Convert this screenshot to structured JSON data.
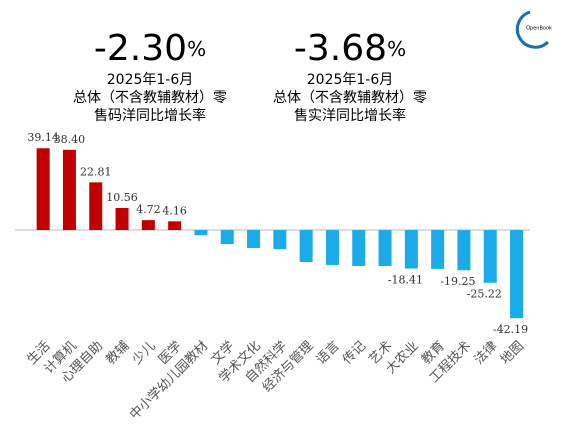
{
  "chart_data": {
    "type": "bar",
    "headlines": [
      {
        "value": "-2.30",
        "unit": "%",
        "lines": [
          "2025年1-6月",
          "总体（不含教辅教材）零",
          "售码洋同比增长率"
        ]
      },
      {
        "value": "-3.68",
        "unit": "%",
        "lines": [
          "2025年1-6月",
          "总体（不含教辅教材）零",
          "售实洋同比增长率"
        ]
      }
    ],
    "logo": "OpenBook",
    "categories": [
      "生活",
      "计算机",
      "心理自助",
      "教辅",
      "少儿",
      "医学",
      "中小学幼儿园教材",
      "文学",
      "学术文化",
      "自然科学",
      "经济与管理",
      "语言",
      "传记",
      "艺术",
      "大农业",
      "教育",
      "工程技术",
      "法律",
      "地图"
    ],
    "values": [
      39.14,
      38.4,
      22.81,
      10.56,
      4.72,
      4.16,
      -2.5,
      -6.7,
      -8.6,
      -9.1,
      -15.3,
      -16.7,
      -17.2,
      -17.2,
      -18.41,
      -18.6,
      -19.25,
      -25.22,
      -42.19
    ],
    "value_labels": [
      "39.14",
      "38.40",
      "22.81",
      "10.56",
      "4.72",
      "4.16",
      null,
      null,
      null,
      null,
      null,
      null,
      null,
      null,
      "-18.41",
      null,
      "-19.25",
      "-25.22",
      "-42.19"
    ],
    "positive_color": "#c00000",
    "negative_color": "#1aabe8",
    "ylim": [
      -50,
      45
    ]
  }
}
